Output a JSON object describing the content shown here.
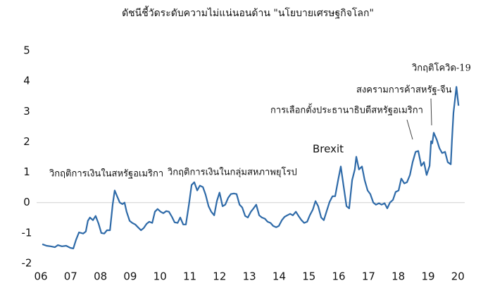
{
  "chart_data": {
    "type": "line",
    "title": "ดัชนีชี้วัดระดับความไม่แน่นอนด้าน \"นโยบายเศรษฐกิจโลก\"",
    "annotations": [
      "วิกฤติการเงินในสหรัฐอเมริกา",
      "วิกฤติการเงินในกลุ่มสหภาพยุโรป",
      "Brexit",
      "การเลือกตั้งประธานาธิบดีสหรัฐอเมริกา",
      "สงครามการค้าสหรัฐ-จีน",
      "วิกฤติโควิด-19"
    ],
    "x": [
      2006.05,
      2006.19,
      2006.33,
      2006.47,
      2006.57,
      2006.71,
      2006.85,
      2006.99,
      2007.09,
      2007.18,
      2007.28,
      2007.42,
      2007.51,
      2007.58,
      2007.65,
      2007.75,
      2007.84,
      2007.94,
      2008.03,
      2008.13,
      2008.22,
      2008.32,
      2008.41,
      2008.48,
      2008.58,
      2008.65,
      2008.74,
      2008.81,
      2008.88,
      2008.98,
      2009.07,
      2009.17,
      2009.26,
      2009.36,
      2009.45,
      2009.55,
      2009.64,
      2009.74,
      2009.83,
      2009.92,
      2010.02,
      2010.11,
      2010.21,
      2010.3,
      2010.4,
      2010.49,
      2010.59,
      2010.68,
      2010.78,
      2010.87,
      2010.97,
      2011.06,
      2011.15,
      2011.25,
      2011.34,
      2011.44,
      2011.53,
      2011.63,
      2011.72,
      2011.82,
      2011.91,
      2012.0,
      2012.1,
      2012.19,
      2012.29,
      2012.38,
      2012.48,
      2012.57,
      2012.67,
      2012.76,
      2012.86,
      2012.95,
      2013.05,
      2013.14,
      2013.23,
      2013.33,
      2013.42,
      2013.52,
      2013.61,
      2013.71,
      2013.8,
      2013.9,
      2013.99,
      2014.09,
      2014.18,
      2014.27,
      2014.37,
      2014.46,
      2014.56,
      2014.65,
      2014.75,
      2014.84,
      2014.94,
      2015.03,
      2015.13,
      2015.22,
      2015.31,
      2015.41,
      2015.5,
      2015.6,
      2015.69,
      2015.79,
      2015.88,
      2015.98,
      2016.07,
      2016.17,
      2016.26,
      2016.35,
      2016.45,
      2016.54,
      2016.59,
      2016.68,
      2016.78,
      2016.87,
      2016.97,
      2017.06,
      2017.16,
      2017.25,
      2017.35,
      2017.44,
      2017.54,
      2017.63,
      2017.72,
      2017.82,
      2017.91,
      2018.01,
      2018.1,
      2018.2,
      2018.29,
      2018.39,
      2018.48,
      2018.58,
      2018.67,
      2018.77,
      2018.86,
      2018.95,
      2019.05,
      2019.1,
      2019.14,
      2019.19,
      2019.29,
      2019.38,
      2019.47,
      2019.57,
      2019.66,
      2019.76,
      2019.8,
      2019.85,
      2019.95,
      2020.02
    ],
    "series": [
      {
        "color": "#2e6aa8",
        "values": [
          -1.37,
          -1.42,
          -1.44,
          -1.47,
          -1.4,
          -1.44,
          -1.42,
          -1.49,
          -1.51,
          -1.23,
          -0.98,
          -1.02,
          -0.95,
          -0.6,
          -0.49,
          -0.58,
          -0.44,
          -0.7,
          -1.0,
          -1.02,
          -0.91,
          -0.91,
          -0.07,
          0.4,
          0.16,
          0,
          -0.05,
          0,
          -0.3,
          -0.6,
          -0.67,
          -0.72,
          -0.81,
          -0.91,
          -0.84,
          -0.7,
          -0.63,
          -0.67,
          -0.3,
          -0.21,
          -0.3,
          -0.35,
          -0.28,
          -0.3,
          -0.47,
          -0.65,
          -0.67,
          -0.49,
          -0.72,
          -0.72,
          -0.07,
          0.58,
          0.67,
          0.4,
          0.56,
          0.51,
          0.26,
          -0.12,
          -0.3,
          -0.42,
          0.05,
          0.33,
          -0.12,
          -0.07,
          0.16,
          0.28,
          0.3,
          0.28,
          -0.07,
          -0.16,
          -0.44,
          -0.49,
          -0.3,
          -0.19,
          -0.07,
          -0.42,
          -0.49,
          -0.53,
          -0.63,
          -0.67,
          -0.77,
          -0.81,
          -0.77,
          -0.58,
          -0.47,
          -0.42,
          -0.37,
          -0.42,
          -0.3,
          -0.44,
          -0.58,
          -0.67,
          -0.63,
          -0.42,
          -0.23,
          0.05,
          -0.12,
          -0.49,
          -0.58,
          -0.26,
          0.02,
          0.21,
          0.21,
          0.74,
          1.19,
          0.49,
          -0.12,
          -0.19,
          0.74,
          1.09,
          1.51,
          1.09,
          1.19,
          0.74,
          0.4,
          0.28,
          0,
          -0.07,
          -0.02,
          -0.07,
          -0.02,
          -0.19,
          0,
          0.09,
          0.35,
          0.4,
          0.79,
          0.63,
          0.67,
          0.91,
          1.33,
          1.67,
          1.7,
          1.21,
          1.33,
          0.91,
          1.21,
          2.02,
          1.95,
          2.3,
          2.07,
          1.79,
          1.63,
          1.67,
          1.33,
          1.26,
          2.02,
          2.95,
          3.81,
          3.19
        ]
      }
    ],
    "xlim": [
      2006,
      2020.3
    ],
    "xticks": [
      {
        "value": 2006,
        "label": "06"
      },
      {
        "value": 2007,
        "label": "07"
      },
      {
        "value": 2008,
        "label": "08"
      },
      {
        "value": 2009,
        "label": "09"
      },
      {
        "value": 2010,
        "label": "10"
      },
      {
        "value": 2011,
        "label": "11"
      },
      {
        "value": 2012,
        "label": "12"
      },
      {
        "value": 2013,
        "label": "13"
      },
      {
        "value": 2014,
        "label": "14"
      },
      {
        "value": 2015,
        "label": "15"
      },
      {
        "value": 2016,
        "label": "16"
      },
      {
        "value": 2017,
        "label": "17"
      },
      {
        "value": 2018,
        "label": "18"
      },
      {
        "value": 2019,
        "label": "19"
      },
      {
        "value": 2020,
        "label": "20"
      }
    ],
    "ylim": [
      -2,
      5
    ],
    "yticks": [
      5,
      4,
      3,
      2,
      1,
      0,
      -1,
      -2
    ],
    "zero_line": true
  }
}
